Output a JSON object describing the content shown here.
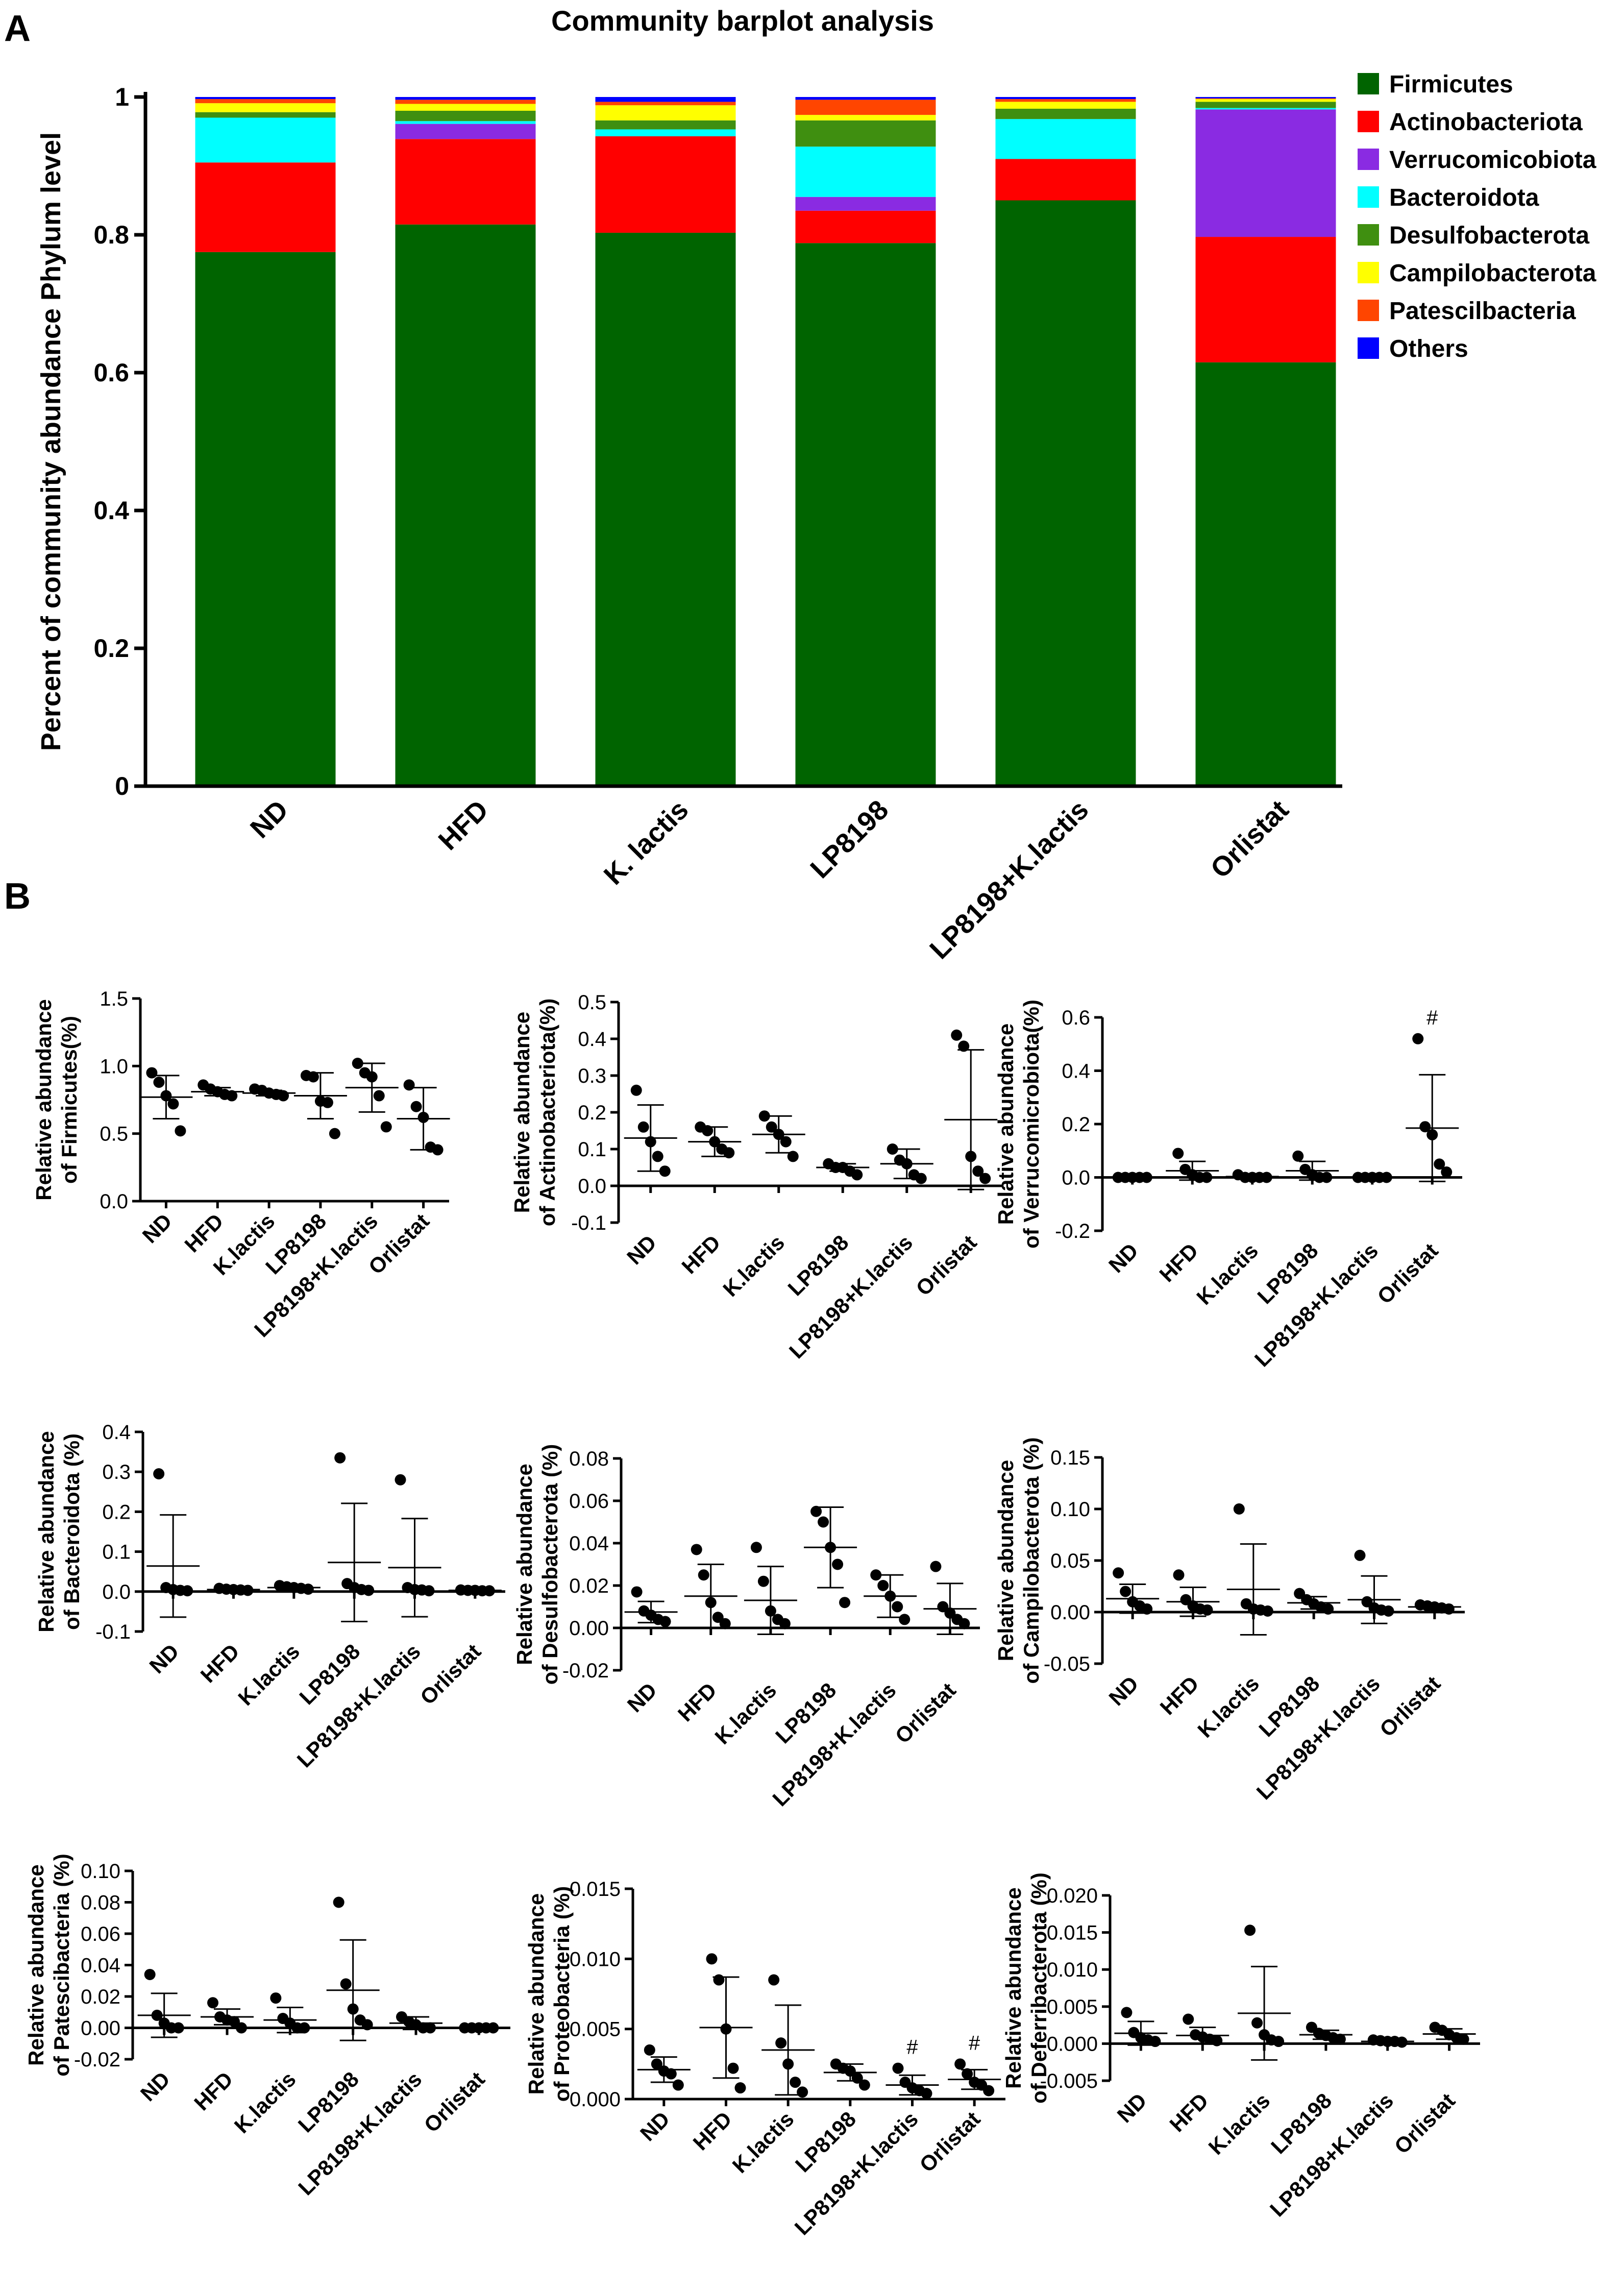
{
  "figure": {
    "panel_a_label": "A",
    "panel_b_label": "B"
  },
  "chart_data": [
    {
      "type": "bar",
      "stacked": true,
      "title": "Community barplot analysis",
      "ylabel": "Percent of community abundance Phylum level",
      "xlabel": "",
      "ylim": [
        0,
        1
      ],
      "yticks": [
        "0",
        "0.2",
        "0.4",
        "0.6",
        "0.8",
        "1"
      ],
      "categories": [
        "ND",
        "HFD",
        "K. lactis",
        "LP8198",
        "LP8198+K.lactis",
        "Orlistat"
      ],
      "legend_position": "top-right",
      "series": [
        {
          "name": "Firmicutes",
          "color": "#006400",
          "values": [
            0.775,
            0.815,
            0.803,
            0.788,
            0.85,
            0.615
          ]
        },
        {
          "name": "Actinobacteriota",
          "color": "#ff0000",
          "values": [
            0.13,
            0.124,
            0.14,
            0.047,
            0.06,
            0.182
          ]
        },
        {
          "name": "Verrucomicobiota",
          "color": "#8a2be2",
          "values": [
            0.0,
            0.022,
            0.0,
            0.02,
            0.0,
            0.185
          ]
        },
        {
          "name": "Bacteroidota",
          "color": "#00ffff",
          "values": [
            0.065,
            0.004,
            0.01,
            0.073,
            0.058,
            0.002
          ]
        },
        {
          "name": "Desulfobacterota",
          "color": "#3f8f10",
          "values": [
            0.008,
            0.015,
            0.013,
            0.038,
            0.015,
            0.009
          ]
        },
        {
          "name": "Campilobacterota",
          "color": "#ffff00",
          "values": [
            0.013,
            0.01,
            0.022,
            0.008,
            0.01,
            0.004
          ]
        },
        {
          "name": "Patescilbacteria",
          "color": "#ff4500",
          "values": [
            0.006,
            0.006,
            0.005,
            0.022,
            0.004,
            0.001
          ]
        },
        {
          "name": "Others",
          "color": "#0000ff",
          "values": [
            0.003,
            0.004,
            0.007,
            0.004,
            0.003,
            0.002
          ]
        }
      ]
    },
    {
      "type": "scatter",
      "ylabel_lines": [
        "Relative abundance",
        "of Firmicutes(%)"
      ],
      "ylim": [
        0,
        1.5
      ],
      "yticks": [
        "0.0",
        "0.5",
        "1.0",
        "1.5"
      ],
      "categories": [
        "ND",
        "HFD",
        "K.lactis",
        "LP8198",
        "LP8198+K.lactis",
        "Orlistat"
      ],
      "points": [
        [
          0.95,
          0.88,
          0.78,
          0.72,
          0.52
        ],
        [
          0.86,
          0.83,
          0.81,
          0.79,
          0.78
        ],
        [
          0.83,
          0.82,
          0.8,
          0.79,
          0.78
        ],
        [
          0.93,
          0.92,
          0.74,
          0.73,
          0.5
        ],
        [
          1.02,
          0.95,
          0.92,
          0.78,
          0.55
        ],
        [
          0.86,
          0.7,
          0.62,
          0.4,
          0.38
        ]
      ],
      "mean": [
        0.77,
        0.81,
        0.8,
        0.78,
        0.84,
        0.61
      ],
      "sd": [
        0.16,
        0.03,
        0.02,
        0.17,
        0.18,
        0.23
      ],
      "annotations": [
        "",
        "",
        "",
        "",
        "",
        ""
      ]
    },
    {
      "type": "scatter",
      "ylabel_lines": [
        "Relative  abundance",
        "of Actinobacteriota(%)"
      ],
      "ylim": [
        -0.1,
        0.5
      ],
      "yticks": [
        "-0.1",
        "0.0",
        "0.1",
        "0.2",
        "0.3",
        "0.4",
        "0.5"
      ],
      "categories": [
        "ND",
        "HFD",
        "K.lactis",
        "LP8198",
        "LP8198+K.lactis",
        "Orlistat"
      ],
      "points": [
        [
          0.26,
          0.16,
          0.12,
          0.08,
          0.04
        ],
        [
          0.16,
          0.15,
          0.12,
          0.1,
          0.09
        ],
        [
          0.19,
          0.16,
          0.14,
          0.12,
          0.08
        ],
        [
          0.06,
          0.05,
          0.05,
          0.04,
          0.03
        ],
        [
          0.1,
          0.07,
          0.06,
          0.03,
          0.02
        ],
        [
          0.41,
          0.38,
          0.08,
          0.04,
          0.02
        ]
      ],
      "mean": [
        0.13,
        0.12,
        0.14,
        0.05,
        0.06,
        0.18
      ],
      "sd": [
        0.09,
        0.04,
        0.05,
        0.01,
        0.04,
        0.19
      ],
      "annotations": [
        "",
        "",
        "",
        "",
        "",
        ""
      ]
    },
    {
      "type": "scatter",
      "ylabel_lines": [
        "Relative  abundance",
        "of Verrucomicrobiota(%)"
      ],
      "ylim": [
        -0.2,
        0.6
      ],
      "yticks": [
        "-0.2",
        "0.0",
        "0.2",
        "0.4",
        "0.6"
      ],
      "categories": [
        "ND",
        "HFD",
        "K.lactis",
        "LP8198",
        "LP8198+K.lactis",
        "Orlistat"
      ],
      "points": [
        [
          0.0,
          0.0,
          0.0,
          0.0,
          0.0
        ],
        [
          0.09,
          0.03,
          0.01,
          0.0,
          0.0
        ],
        [
          0.01,
          0.0,
          0.0,
          0.0,
          0.0
        ],
        [
          0.08,
          0.03,
          0.01,
          0.0,
          0.0
        ],
        [
          0.0,
          0.0,
          0.0,
          0.0,
          0.0
        ],
        [
          0.52,
          0.19,
          0.16,
          0.05,
          0.02
        ]
      ],
      "mean": [
        0.0,
        0.025,
        0.003,
        0.025,
        0.0,
        0.185
      ],
      "sd": [
        0.0,
        0.035,
        0.004,
        0.035,
        0.0,
        0.2
      ],
      "annotations": [
        "",
        "",
        "",
        "",
        "",
        "#"
      ]
    },
    {
      "type": "scatter",
      "ylabel_lines": [
        "Relative  abundance",
        "of Bacteroidota (%)"
      ],
      "ylim": [
        -0.1,
        0.4
      ],
      "yticks": [
        "-0.1",
        "0.0",
        "0.1",
        "0.2",
        "0.3",
        "0.4"
      ],
      "categories": [
        "ND",
        "HFD",
        "K.lactis",
        "LP8198",
        "LP8198+K.lactis",
        "Orlistat"
      ],
      "points": [
        [
          0.295,
          0.01,
          0.005,
          0.003,
          0.002
        ],
        [
          0.008,
          0.006,
          0.005,
          0.004,
          0.003
        ],
        [
          0.015,
          0.012,
          0.01,
          0.008,
          0.006
        ],
        [
          0.335,
          0.02,
          0.01,
          0.005,
          0.003
        ],
        [
          0.28,
          0.01,
          0.005,
          0.004,
          0.002
        ],
        [
          0.004,
          0.003,
          0.003,
          0.002,
          0.002
        ]
      ],
      "mean": [
        0.064,
        0.005,
        0.01,
        0.073,
        0.06,
        0.003
      ],
      "sd": [
        0.128,
        0.002,
        0.004,
        0.148,
        0.123,
        0.001
      ],
      "annotations": [
        "",
        "",
        "",
        "",
        "",
        ""
      ]
    },
    {
      "type": "scatter",
      "ylabel_lines": [
        "Relative  abundance",
        "of Desulfobacterota (%)"
      ],
      "ylim": [
        -0.02,
        0.08
      ],
      "yticks": [
        "-0.02",
        "0.00",
        "0.02",
        "0.04",
        "0.06",
        "0.08"
      ],
      "categories": [
        "ND",
        "HFD",
        "K.lactis",
        "LP8198",
        "LP8198+K.lactis",
        "Orlistat"
      ],
      "points": [
        [
          0.017,
          0.008,
          0.006,
          0.004,
          0.003
        ],
        [
          0.037,
          0.025,
          0.012,
          0.005,
          0.002
        ],
        [
          0.038,
          0.022,
          0.008,
          0.004,
          0.002
        ],
        [
          0.055,
          0.05,
          0.038,
          0.03,
          0.012
        ],
        [
          0.025,
          0.02,
          0.015,
          0.01,
          0.004
        ],
        [
          0.029,
          0.01,
          0.007,
          0.004,
          0.002
        ]
      ],
      "mean": [
        0.0075,
        0.015,
        0.013,
        0.038,
        0.015,
        0.009
      ],
      "sd": [
        0.005,
        0.015,
        0.016,
        0.019,
        0.01,
        0.012
      ],
      "annotations": [
        "",
        "",
        "",
        "",
        "",
        ""
      ]
    },
    {
      "type": "scatter",
      "ylabel_lines": [
        "Relative   abundance",
        "of Campilobacterota (%)"
      ],
      "ylim": [
        -0.05,
        0.15
      ],
      "yticks": [
        "-0.05",
        "0.00",
        "0.05",
        "0.10",
        "0.15"
      ],
      "categories": [
        "ND",
        "HFD",
        "K.lactis",
        "LP8198",
        "LP8198+K.lactis",
        "Orlistat"
      ],
      "points": [
        [
          0.038,
          0.02,
          0.01,
          0.006,
          0.003
        ],
        [
          0.036,
          0.012,
          0.006,
          0.003,
          0.002
        ],
        [
          0.1,
          0.008,
          0.003,
          0.002,
          0.001
        ],
        [
          0.018,
          0.012,
          0.008,
          0.005,
          0.003
        ],
        [
          0.055,
          0.01,
          0.004,
          0.002,
          0.001
        ],
        [
          0.007,
          0.006,
          0.005,
          0.004,
          0.003
        ]
      ],
      "mean": [
        0.013,
        0.01,
        0.022,
        0.009,
        0.012,
        0.005
      ],
      "sd": [
        0.014,
        0.014,
        0.044,
        0.006,
        0.023,
        0.002
      ],
      "annotations": [
        "",
        "",
        "",
        "",
        "",
        ""
      ]
    },
    {
      "type": "scatter",
      "ylabel_lines": [
        "Relative  abundance",
        "of Patescibacteria (%)"
      ],
      "ylim": [
        -0.02,
        0.1
      ],
      "yticks": [
        "-0.02",
        "0.00",
        "0.02",
        "0.04",
        "0.06",
        "0.08",
        "0.10"
      ],
      "categories": [
        "ND",
        "HFD",
        "K.lactis",
        "LP8198",
        "LP8198+K.lactis",
        "Orlistat"
      ],
      "points": [
        [
          0.034,
          0.008,
          0.003,
          0.0,
          0.0
        ],
        [
          0.016,
          0.007,
          0.005,
          0.004,
          0.0
        ],
        [
          0.019,
          0.006,
          0.003,
          0.0,
          0.0
        ],
        [
          0.08,
          0.028,
          0.012,
          0.005,
          0.002
        ],
        [
          0.007,
          0.004,
          0.002,
          0.0,
          0.0
        ],
        [
          0.0,
          0.0,
          0.0,
          0.0,
          0.0
        ]
      ],
      "mean": [
        0.008,
        0.007,
        0.005,
        0.024,
        0.003,
        0.0
      ],
      "sd": [
        0.014,
        0.005,
        0.008,
        0.032,
        0.004,
        0.0
      ],
      "annotations": [
        "",
        "",
        "",
        "",
        "",
        ""
      ]
    },
    {
      "type": "scatter",
      "ylabel_lines": [
        "Relative  abundance",
        "of Proteobacteria (%)"
      ],
      "ylim": [
        0,
        0.015
      ],
      "yticks": [
        "0.000",
        "0.005",
        "0.010",
        "0.015"
      ],
      "categories": [
        "ND",
        "HFD",
        "K.lactis",
        "LP8198",
        "LP8198+K.lactis",
        "Orlistat"
      ],
      "points": [
        [
          0.0035,
          0.0025,
          0.002,
          0.0018,
          0.001
        ],
        [
          0.01,
          0.0085,
          0.005,
          0.0022,
          0.0008
        ],
        [
          0.0085,
          0.004,
          0.0025,
          0.0012,
          0.0005
        ],
        [
          0.0025,
          0.0022,
          0.002,
          0.0015,
          0.001
        ],
        [
          0.0022,
          0.0012,
          0.0008,
          0.0006,
          0.0004
        ],
        [
          0.0025,
          0.0018,
          0.0012,
          0.001,
          0.0006
        ]
      ],
      "mean": [
        0.0021,
        0.0051,
        0.0035,
        0.0019,
        0.001,
        0.0014
      ],
      "sd": [
        0.0009,
        0.0036,
        0.0032,
        0.0006,
        0.0007,
        0.0007
      ],
      "annotations": [
        "",
        "",
        "",
        "",
        "#",
        "#"
      ]
    },
    {
      "type": "scatter",
      "ylabel_lines": [
        "Relative  abundance",
        "of Deferribacterota (%)"
      ],
      "ylim": [
        -0.005,
        0.02
      ],
      "yticks": [
        "-0.005",
        "0.000",
        "0.005",
        "0.010",
        "0.015",
        "0.020"
      ],
      "categories": [
        "ND",
        "HFD",
        "K.lactis",
        "LP8198",
        "LP8198+K.lactis",
        "Orlistat"
      ],
      "points": [
        [
          0.0042,
          0.0015,
          0.0008,
          0.0005,
          0.0003
        ],
        [
          0.0033,
          0.0012,
          0.0009,
          0.0006,
          0.0004
        ],
        [
          0.0153,
          0.0028,
          0.0012,
          0.0005,
          0.0003
        ],
        [
          0.0022,
          0.0014,
          0.0011,
          0.0008,
          0.0006
        ],
        [
          0.0005,
          0.0004,
          0.0003,
          0.0003,
          0.0002
        ],
        [
          0.0022,
          0.0018,
          0.0012,
          0.0008,
          0.0006
        ]
      ],
      "mean": [
        0.0014,
        0.0011,
        0.0041,
        0.0012,
        0.0003,
        0.0013
      ],
      "sd": [
        0.0016,
        0.0011,
        0.0063,
        0.0006,
        0.0001,
        0.0007
      ],
      "annotations": [
        "",
        "",
        "",
        "",
        "",
        ""
      ]
    }
  ]
}
